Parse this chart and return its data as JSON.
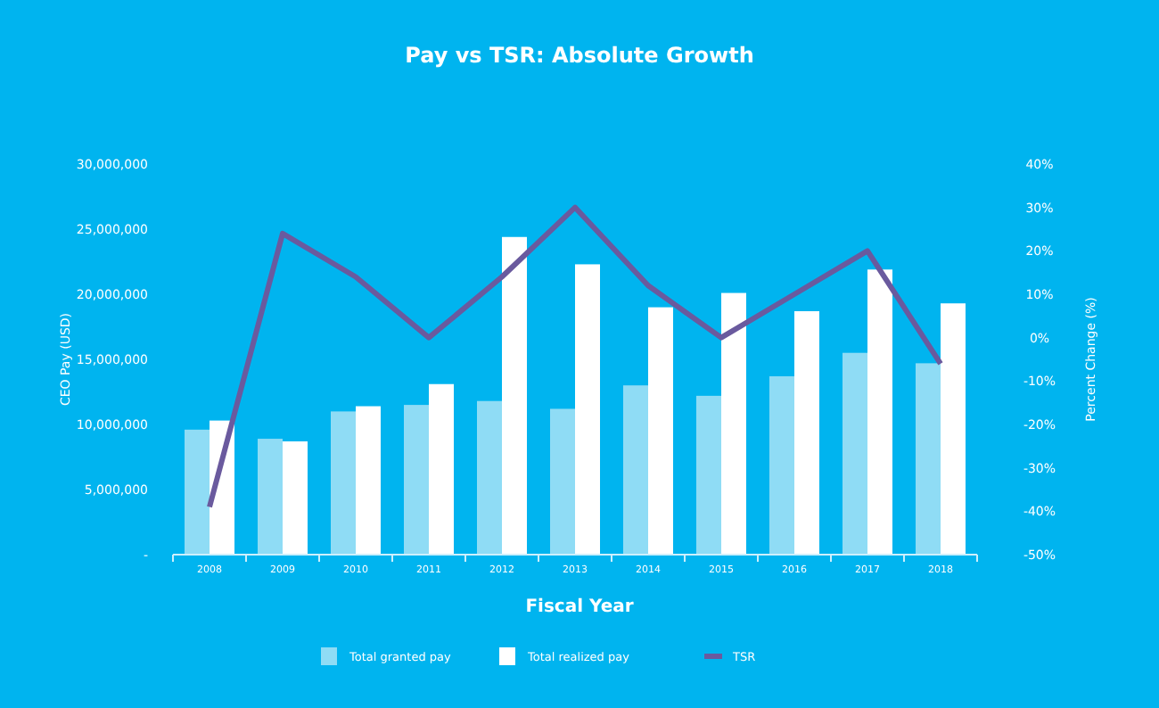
{
  "chart_data": {
    "type": "bar",
    "title": "Pay vs TSR: Absolute Growth",
    "xlabel": "Fiscal Year",
    "ylabel": "CEO Pay (USD)",
    "y2label": "Percent Change (%)",
    "categories": [
      "2008",
      "2009",
      "2010",
      "2011",
      "2012",
      "2013",
      "2014",
      "2015",
      "2016",
      "2017",
      "2018"
    ],
    "series": [
      {
        "name": "Total granted pay",
        "color": "#8fdcf5",
        "values": [
          9600000,
          8900000,
          11000000,
          11500000,
          11800000,
          11200000,
          13000000,
          12200000,
          13700000,
          15500000,
          14700000
        ]
      },
      {
        "name": "Total realized pay",
        "color": "#ffffff",
        "values": [
          10300000,
          8700000,
          11400000,
          13100000,
          24400000,
          22300000,
          19000000,
          20100000,
          18700000,
          21900000,
          19300000
        ]
      },
      {
        "name": "TSR",
        "type": "line",
        "axis": "y2",
        "color": "#6a5a9e",
        "values": [
          -39,
          24,
          14,
          0,
          14,
          30,
          12,
          0,
          10,
          20,
          -6
        ]
      }
    ],
    "ylim": [
      0,
      30000000
    ],
    "yticks": [
      {
        "value": 0,
        "label": "-"
      },
      {
        "value": 5000000,
        "label": "5,000,000"
      },
      {
        "value": 10000000,
        "label": "10,000,000"
      },
      {
        "value": 15000000,
        "label": "15,000,000"
      },
      {
        "value": 20000000,
        "label": "20,000,000"
      },
      {
        "value": 25000000,
        "label": "25,000,000"
      },
      {
        "value": 30000000,
        "label": "30,000,000"
      }
    ],
    "y2lim": [
      -50,
      40
    ],
    "y2ticks": [
      {
        "value": -50,
        "label": "-50%"
      },
      {
        "value": -40,
        "label": "-40%"
      },
      {
        "value": -30,
        "label": "-30%"
      },
      {
        "value": -20,
        "label": "-20%"
      },
      {
        "value": -10,
        "label": "-10%"
      },
      {
        "value": 0,
        "label": "0%"
      },
      {
        "value": 10,
        "label": "10%"
      },
      {
        "value": 20,
        "label": "20%"
      },
      {
        "value": 30,
        "label": "30%"
      },
      {
        "value": 40,
        "label": "40%"
      }
    ],
    "legend": "bottom",
    "marker": "none",
    "line_style": "solid"
  }
}
